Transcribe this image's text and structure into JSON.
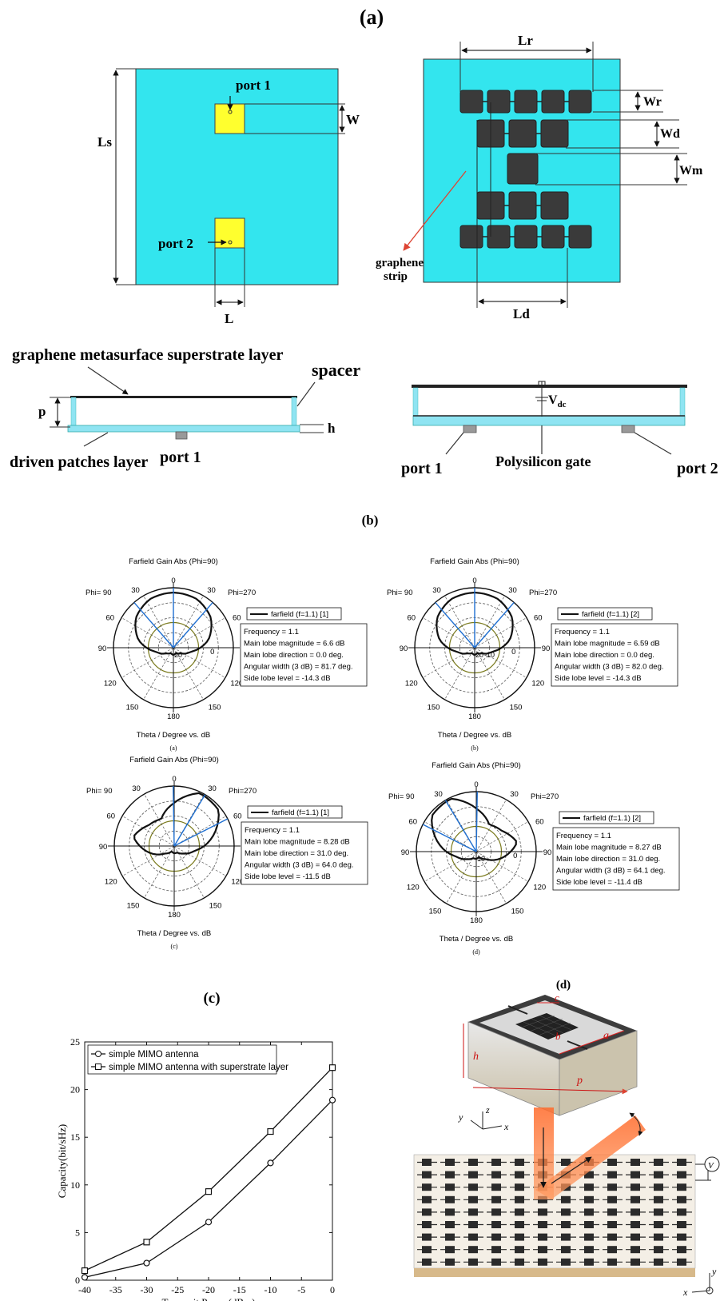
{
  "figure_labels": {
    "a": "(a)",
    "b": "(b)",
    "c": "(c)",
    "d": "(d)"
  },
  "panel_a": {
    "top_left": {
      "port1": "port 1",
      "port2": "port 2",
      "Ls": "Ls",
      "W": "W",
      "L": "L"
    },
    "top_right": {
      "Lr": "Lr",
      "Wr": "Wr",
      "Wd": "Wd",
      "Wm": "Wm",
      "Ld": "Ld",
      "graphene_line1": "graphene",
      "graphene_line2": "strip"
    },
    "side_left": {
      "title": "graphene metasurface superstrate layer",
      "spacer": "spacer",
      "p": "p",
      "h": "h",
      "driven": "driven patches layer",
      "port1": "port 1"
    },
    "side_right": {
      "vdc_v": "V",
      "vdc_sub": "dc",
      "port1": "port 1",
      "gate": "Polysilicon gate",
      "port2": "port 2"
    }
  },
  "colors": {
    "substrate": "#33e5ee",
    "patch_yellow": "#ffff2e",
    "patch_dark": "#3a3a3a",
    "bar_blue": "#8fe4f2",
    "polar_blue": "#1f6fd1",
    "olive": "#7b7b1e",
    "beam": "#ff8a4a"
  },
  "polar_plots": [
    {
      "title": "Farfield Gain Abs (Phi=90)",
      "phi_left": "Phi= 90",
      "phi_right": "Phi=270",
      "xlabel": "Theta / Degree vs. dB",
      "sublabel": "(a)",
      "ring_labels": [
        "-20"
      ],
      "ticks": {
        "top": "0",
        "tl": "30",
        "tr": "30",
        "ml": "60",
        "mr": "60",
        "l": "90",
        "r": "90",
        "bl": "120",
        "br": "120",
        "bbl": "150",
        "bbr": "150",
        "b": "180",
        "r0": "0"
      },
      "legend": "farfield (f=1.1) [1]",
      "info": [
        "Frequency = 1.1",
        "Main lobe magnitude =      6.6 dB",
        "Main lobe direction =      0.0 deg.",
        "Angular width (3 dB) =  81.7 deg.",
        "Side lobe level =  -14.3 dB"
      ]
    },
    {
      "title": "Farfield Gain Abs (Phi=90)",
      "phi_left": "Phi= 90",
      "phi_right": "Phi=270",
      "xlabel": "Theta / Degree vs. dB",
      "sublabel": "(b)",
      "ring_labels": [
        "-20",
        "-10"
      ],
      "ticks": {
        "top": "0",
        "tl": "30",
        "tr": "30",
        "ml": "60",
        "mr": "60",
        "l": "90",
        "r": "90",
        "bl": "120",
        "br": "120",
        "bbl": "150",
        "bbr": "150",
        "b": "180",
        "r0": "0"
      },
      "legend": "farfield (f=1.1) [2]",
      "info": [
        "Frequency = 1.1",
        "Main lobe magnitude =      6.59 dB",
        "Main lobe direction =      0.0 deg.",
        "Angular width (3 dB) =  82.0 deg.",
        "Side lobe level =  -14.3 dB"
      ]
    },
    {
      "title": "Farfield Gain Abs (Phi=90)",
      "phi_left": "Phi= 90",
      "phi_right": "Phi=270",
      "xlabel": "Theta / Degree vs. dB",
      "sublabel": "(c)",
      "ring_labels": [],
      "ticks": {
        "top": "0",
        "tl": "30",
        "tr": "30",
        "ml": "60",
        "mr": "60",
        "l": "90",
        "r": "90",
        "bl": "120",
        "br": "120",
        "bbl": "150",
        "bbr": "150",
        "b": "180",
        "r0": ""
      },
      "legend": "farfield (f=1.1) [1]",
      "info": [
        "Frequency = 1.1",
        "Main lobe magnitude =      8.28 dB",
        "Main lobe direction =    31.0 deg.",
        "Angular width (3 dB) =  64.0 deg.",
        "Side lobe level =  -11.5 dB"
      ]
    },
    {
      "title": "Farfield Gain Abs (Phi=90)",
      "phi_left": "Phi= 90",
      "phi_right": "Phi=270",
      "xlabel": "Theta / Degree vs. dB",
      "sublabel": "(d)",
      "ring_labels": [
        "-10"
      ],
      "ticks": {
        "top": "0",
        "tl": "30",
        "tr": "30",
        "ml": "60",
        "mr": "60",
        "l": "90",
        "r": "90",
        "bl": "120",
        "br": "120",
        "bbl": "150",
        "bbr": "150",
        "b": "180",
        "r0": "0"
      },
      "legend": "farfield (f=1.1) [2]",
      "info": [
        "Frequency = 1.1",
        "Main lobe magnitude =      8.27 dB",
        "Main lobe direction =    31.0 deg.",
        "Angular width (3 dB) =  64.1 deg.",
        "Side lobe level =  -11.4 dB"
      ]
    }
  ],
  "panel_d": {
    "c": "c",
    "b": "b",
    "a": "a",
    "h": "h",
    "p": "p",
    "y": "y",
    "z": "z",
    "x": "x",
    "v": "V"
  },
  "chart_data": {
    "type": "line",
    "x": [
      -40,
      -30,
      -20,
      -10,
      0
    ],
    "series": [
      {
        "name": "simple MIMO antenna",
        "marker": "circle",
        "values": [
          0.3,
          1.8,
          6.1,
          12.3,
          18.9
        ]
      },
      {
        "name": "simple MIMO antenna with superstrate layer",
        "marker": "square",
        "values": [
          1.0,
          4.0,
          9.3,
          15.6,
          22.3
        ]
      }
    ],
    "xlabel": "Transmit Power(dBm)",
    "ylabel": "Capacity(bit/sHz)",
    "xlim": [
      -40,
      0
    ],
    "ylim": [
      0,
      25
    ],
    "xticks": [
      "-40",
      "-35",
      "-30",
      "-25",
      "-20",
      "-15",
      "-10",
      "-5",
      "0"
    ],
    "yticks": [
      "0",
      "5",
      "10",
      "15",
      "20",
      "25"
    ],
    "legend_position": "top-left",
    "grid": false
  }
}
